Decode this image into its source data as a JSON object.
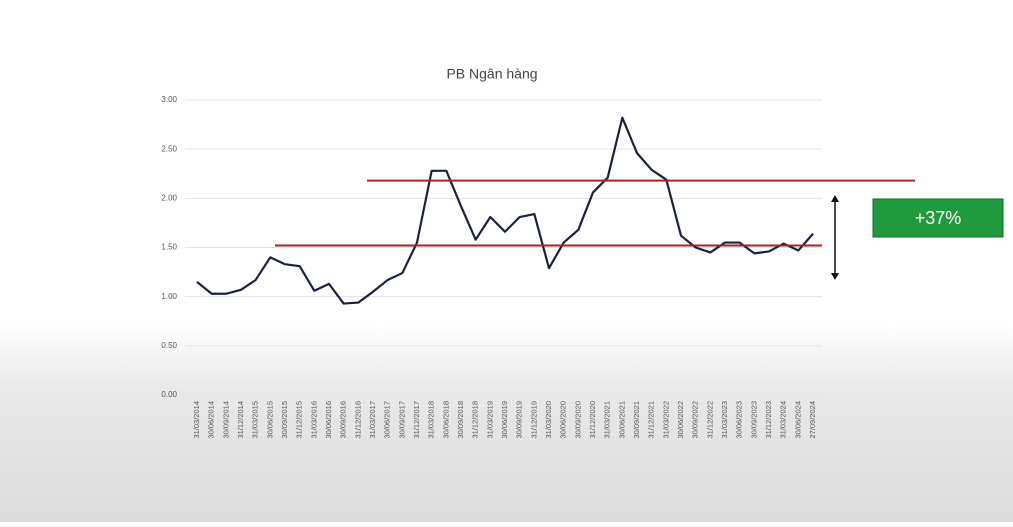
{
  "chart_data": {
    "type": "line",
    "title": "PB Ngân hàng",
    "categories": [
      "31/03/2014",
      "30/06/2014",
      "30/09/2014",
      "31/12/2014",
      "31/03/2015",
      "30/06/2015",
      "30/09/2015",
      "31/12/2015",
      "31/03/2016",
      "30/06/2016",
      "30/09/2016",
      "31/12/2016",
      "31/03/2017",
      "30/06/2017",
      "30/09/2017",
      "31/12/2017",
      "31/03/2018",
      "30/06/2018",
      "30/09/2018",
      "31/12/2018",
      "31/03/2019",
      "30/06/2019",
      "30/09/2019",
      "31/12/2019",
      "31/03/2020",
      "30/06/2020",
      "30/09/2020",
      "31/12/2020",
      "31/03/2021",
      "30/06/2021",
      "30/09/2021",
      "31/12/2021",
      "31/03/2022",
      "30/06/2022",
      "30/09/2022",
      "31/12/2022",
      "31/03/2023",
      "30/06/2023",
      "30/09/2023",
      "31/12/2023",
      "31/03/2024",
      "30/06/2024",
      "27/09/2024"
    ],
    "values": [
      1.15,
      1.03,
      1.03,
      1.07,
      1.17,
      1.4,
      1.33,
      1.31,
      1.06,
      1.13,
      0.93,
      0.94,
      1.05,
      1.17,
      1.24,
      1.55,
      2.28,
      2.28,
      1.92,
      1.58,
      1.81,
      1.66,
      1.81,
      1.84,
      1.29,
      1.55,
      1.68,
      2.06,
      2.21,
      2.82,
      2.46,
      2.29,
      2.19,
      1.62,
      1.5,
      1.45,
      1.55,
      1.55,
      1.44,
      1.46,
      1.54,
      1.47,
      1.64
    ],
    "color": "#1a2340",
    "ylim": [
      0,
      3
    ],
    "yticks": [
      {
        "value": 0,
        "label": "0.00"
      },
      {
        "value": 0.5,
        "label": "0.50"
      },
      {
        "value": 1,
        "label": "1.00"
      },
      {
        "value": 1.5,
        "label": "1.50"
      },
      {
        "value": 2,
        "label": "2.00"
      },
      {
        "value": 2.5,
        "label": "2.50"
      },
      {
        "value": 3,
        "label": "3.00"
      }
    ],
    "grid": true,
    "reference_lines": [
      {
        "value": 2.18,
        "color": "#a3262a"
      },
      {
        "value": 1.52,
        "color": "#a3262a"
      }
    ],
    "annotation": {
      "text": "+37%",
      "color": "#1f9a3c"
    }
  }
}
